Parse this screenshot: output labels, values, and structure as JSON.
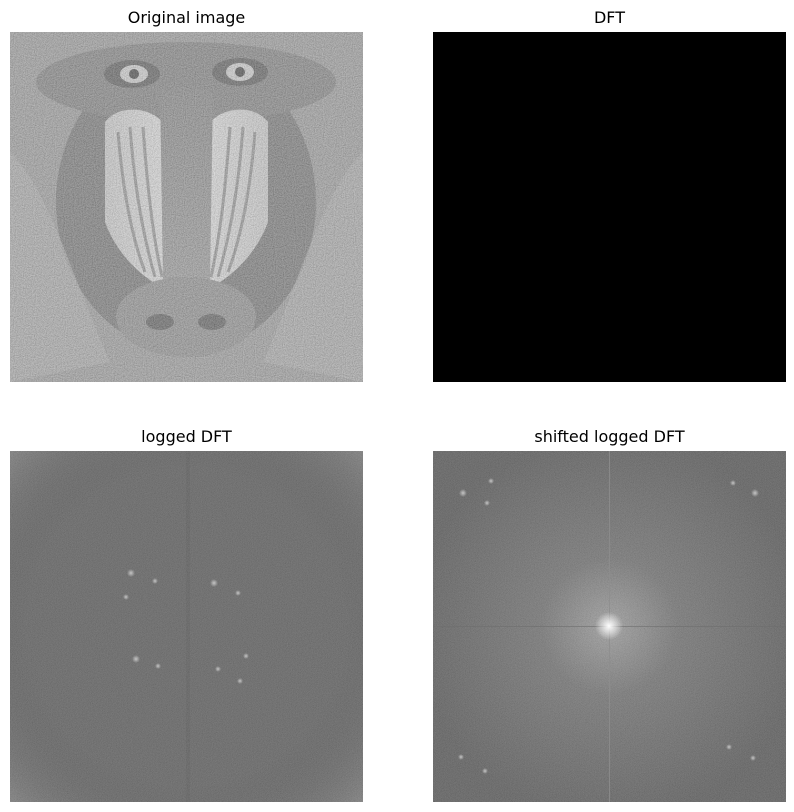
{
  "panels": [
    {
      "title": "Original image",
      "content": "grayscale mandrill (baboon) face photograph"
    },
    {
      "title": "DFT",
      "content": "solid black image"
    },
    {
      "title": "logged DFT",
      "content": "noisy gray spectrum with faint bright peaks"
    },
    {
      "title": "shifted logged DFT",
      "content": "noisy gray spectrum with bright center and faint cross lines"
    }
  ],
  "colors": {
    "background": "#ffffff",
    "dft": "#000000",
    "spectrum_gray": "#575757"
  }
}
